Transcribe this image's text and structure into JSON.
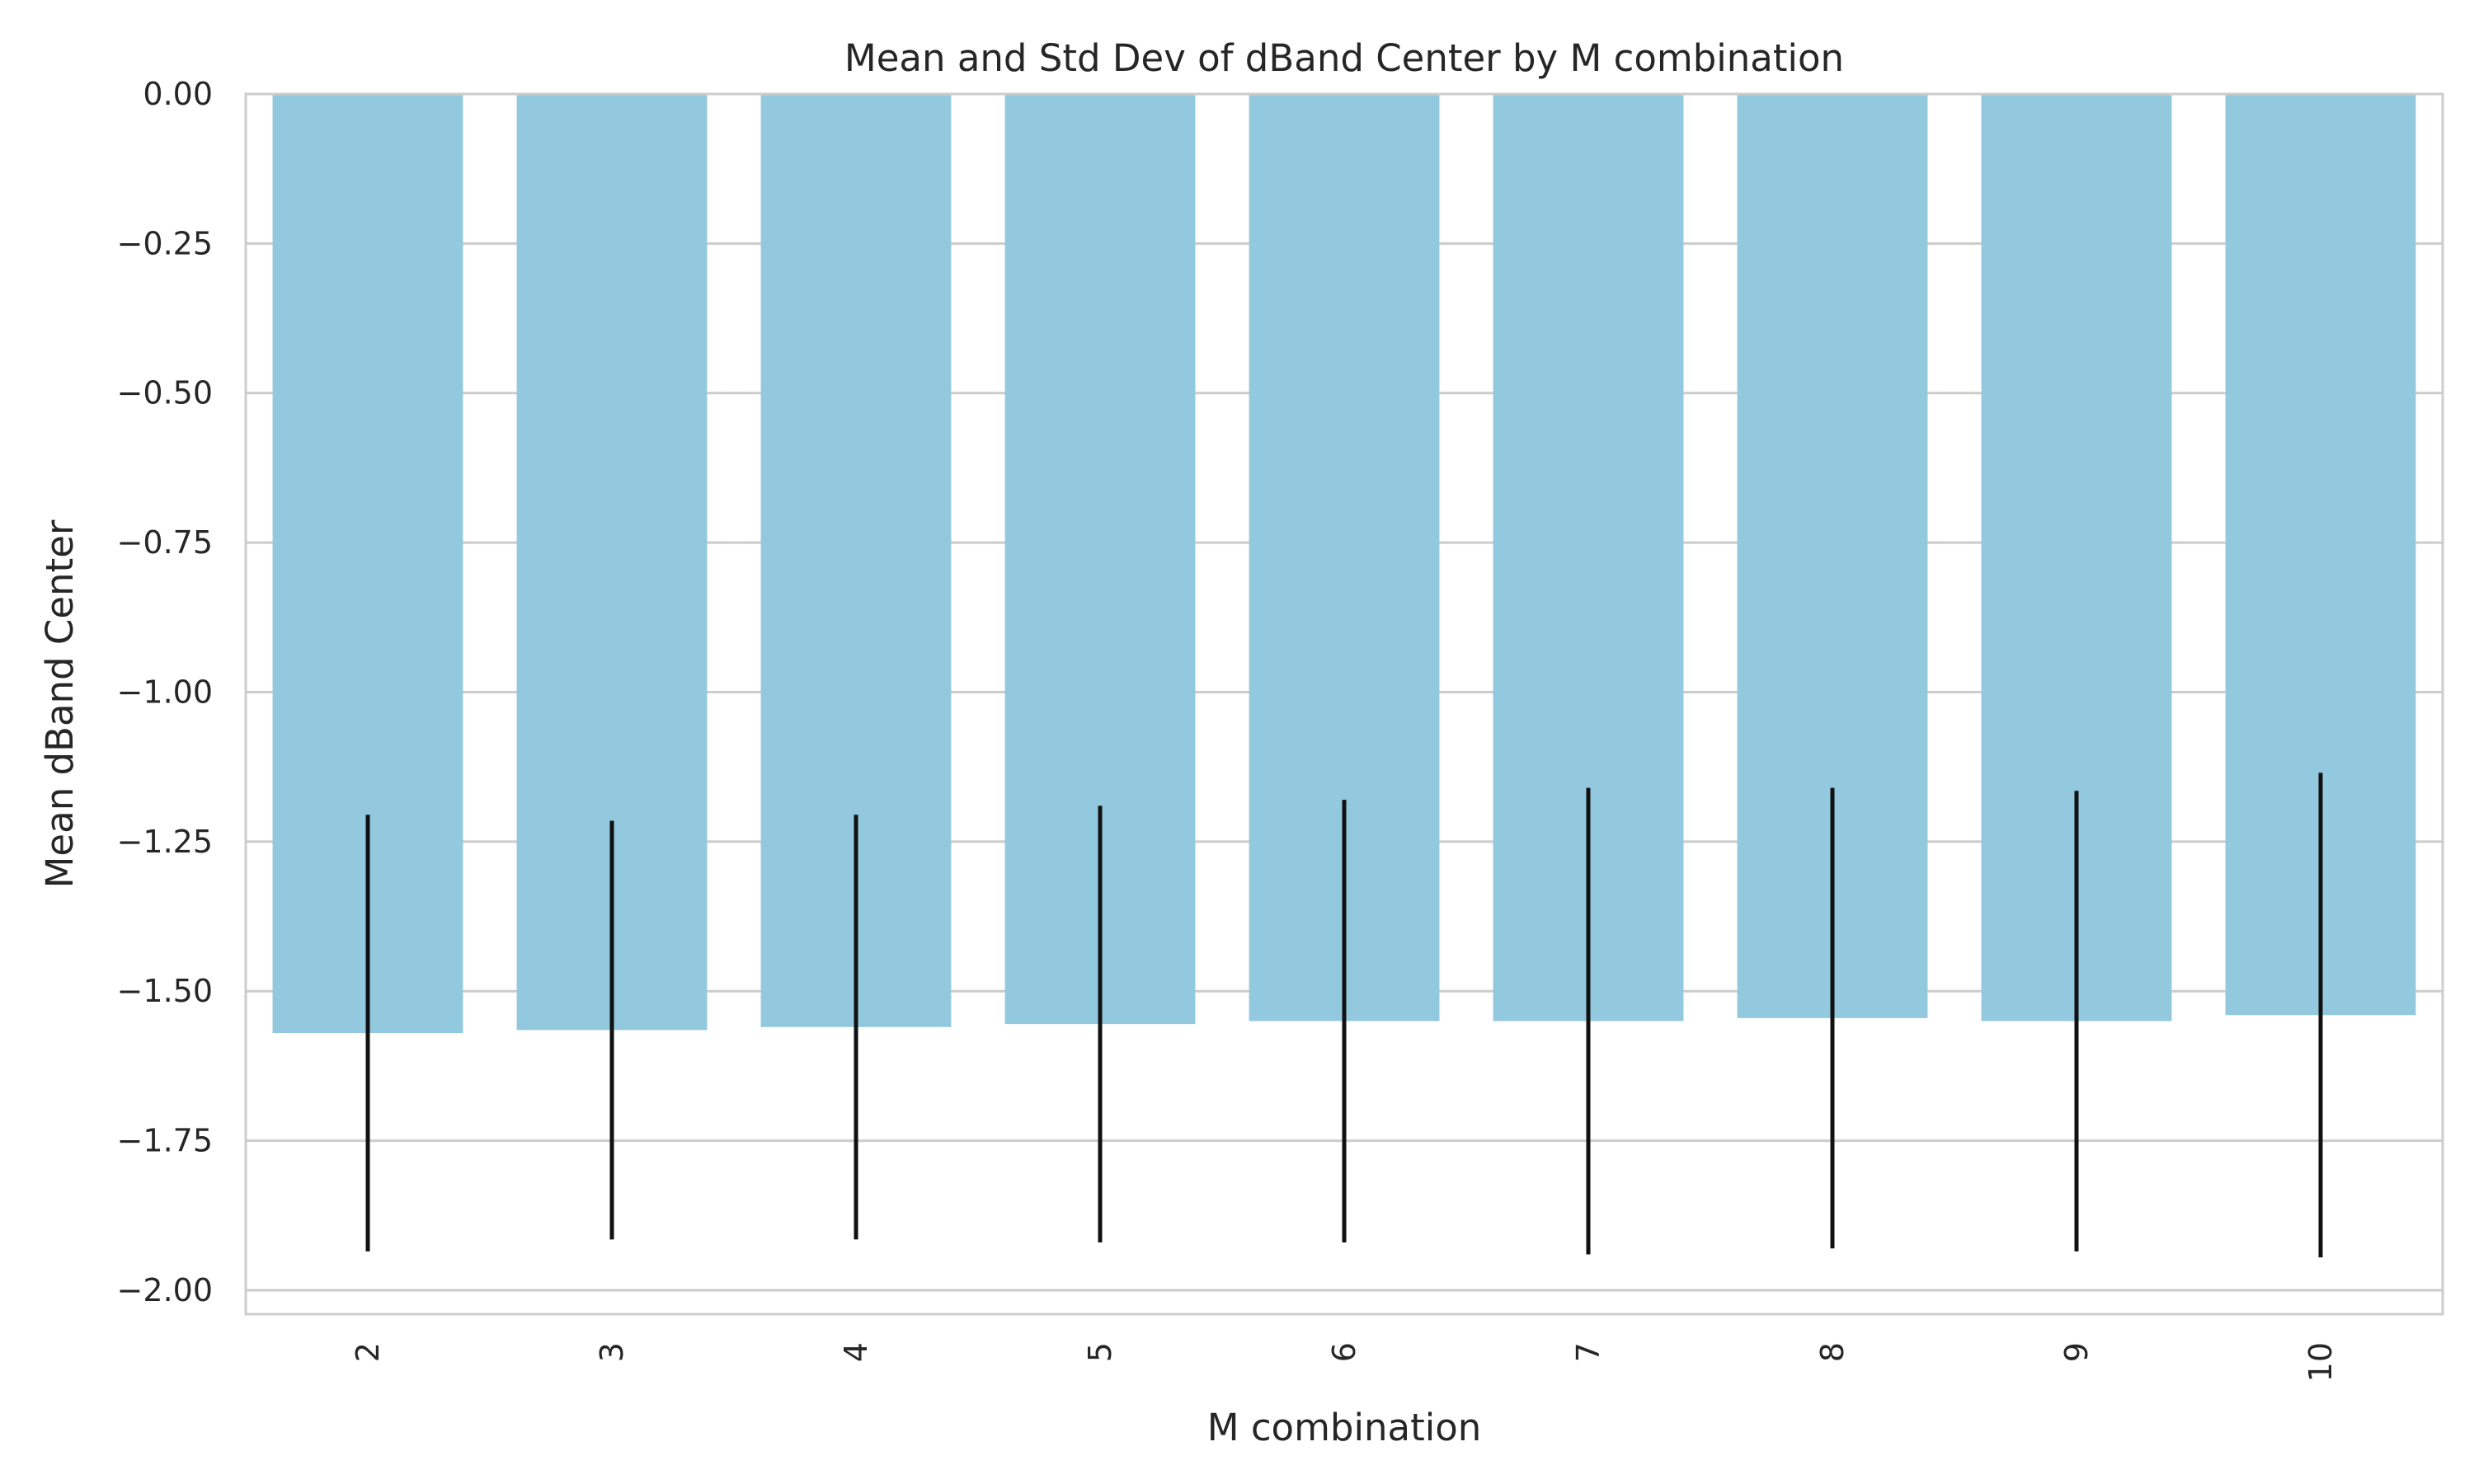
{
  "chart_data": {
    "type": "bar",
    "title": "Mean and Std Dev of dBand Center by M combination",
    "xlabel": "M combination",
    "ylabel": "Mean dBand Center",
    "categories": [
      "2",
      "3",
      "4",
      "5",
      "6",
      "7",
      "8",
      "9",
      "10"
    ],
    "values": [
      -1.57,
      -1.565,
      -1.56,
      -1.555,
      -1.55,
      -1.55,
      -1.545,
      -1.55,
      -1.54
    ],
    "error": [
      0.365,
      0.35,
      0.355,
      0.365,
      0.37,
      0.39,
      0.385,
      0.385,
      0.405
    ],
    "ylim": [
      -2.04,
      0.0
    ],
    "yticks": [
      0.0,
      -0.25,
      -0.5,
      -0.75,
      -1.0,
      -1.25,
      -1.5,
      -1.75,
      -2.0
    ],
    "ytick_labels": [
      "0.00",
      "−0.25",
      "−0.50",
      "−0.75",
      "−1.00",
      "−1.25",
      "−1.50",
      "−1.75",
      "−2.00"
    ],
    "grid": true,
    "colors": {
      "bar": "#93c9de",
      "error_bar": "#111111",
      "grid": "#cccccc",
      "axes": "#cccccc",
      "text": "#262626"
    }
  }
}
